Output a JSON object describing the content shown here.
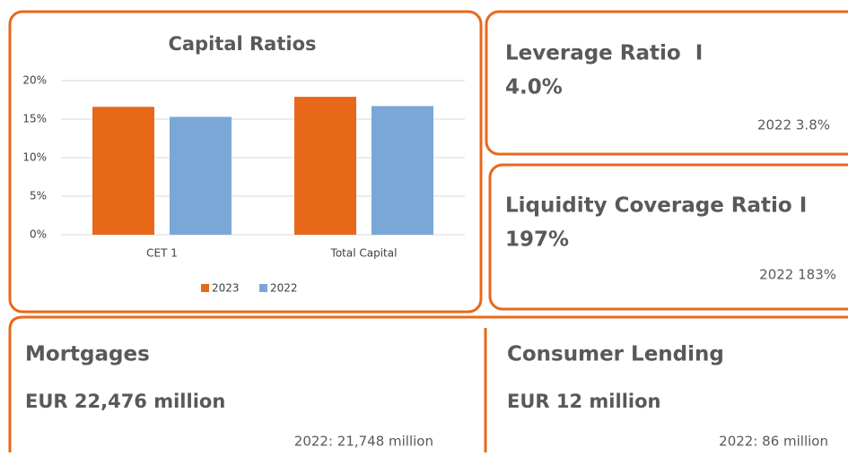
{
  "chart_data": {
    "type": "bar",
    "title": "Capital Ratios",
    "categories": [
      "CET 1",
      "Total Capital"
    ],
    "series": [
      {
        "name": "2023",
        "color": "#e8681a",
        "values": [
          16.6,
          17.9
        ]
      },
      {
        "name": "2022",
        "color": "#7ba7d7",
        "values": [
          15.3,
          16.7
        ]
      }
    ],
    "ylim": [
      0,
      20
    ],
    "yticks": [
      {
        "value": 0,
        "label": "0%"
      },
      {
        "value": 5,
        "label": "5%"
      },
      {
        "value": 10,
        "label": "10%"
      },
      {
        "value": 15,
        "label": "15%"
      },
      {
        "value": 20,
        "label": "20%"
      }
    ],
    "grid": true,
    "legend": "bottom"
  },
  "cards": [
    {
      "title": "Leverage Ratio  I",
      "value": "4.0%",
      "previous": "2022 3.8%"
    },
    {
      "title": "Liquidity Coverage Ratio I",
      "value": "197%",
      "previous": "2022 183%"
    }
  ],
  "bottom": [
    {
      "title": "Mortgages",
      "value": "EUR 22,476 million",
      "previous": "2022: 21,748 million"
    },
    {
      "title": "Consumer Lending",
      "value": "EUR 12 million",
      "previous": "2022: 86 million"
    }
  ]
}
